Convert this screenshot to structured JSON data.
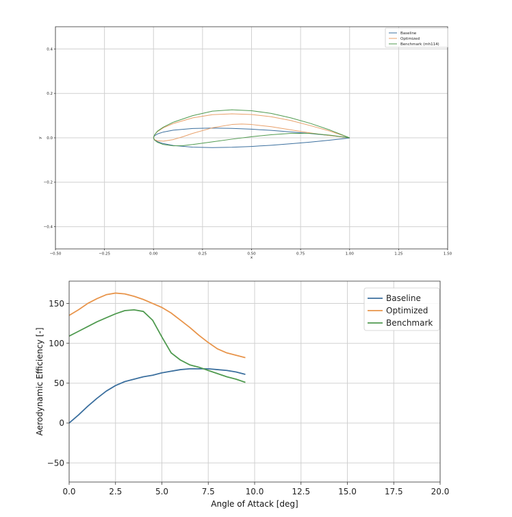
{
  "chart_data": [
    {
      "type": "line",
      "title": "",
      "xlabel": "x",
      "ylabel": "y",
      "xlim": [
        -0.5,
        1.5
      ],
      "ylim": [
        -0.5,
        0.5
      ],
      "grid": true,
      "legend": "top-right",
      "xticks": [
        "−0.50",
        "−0.25",
        "0.00",
        "0.25",
        "0.50",
        "0.75",
        "1.00",
        "1.25",
        "1.50"
      ],
      "xtick_values": [
        -0.5,
        -0.25,
        0,
        0.25,
        0.5,
        0.75,
        1.0,
        1.25,
        1.5
      ],
      "yticks": [
        "−0.4",
        "−0.2",
        "0.0",
        "0.2",
        "0.4"
      ],
      "ytick_values": [
        -0.4,
        -0.2,
        0,
        0.2,
        0.4
      ],
      "series": [
        {
          "name": "Baseline",
          "color": "#3b6f9e",
          "points": [
            [
              1,
              0.001
            ],
            [
              0.9,
              0.0106
            ],
            [
              0.8,
              0.0193
            ],
            [
              0.7,
              0.0268
            ],
            [
              0.6,
              0.0334
            ],
            [
              0.5,
              0.0388
            ],
            [
              0.4,
              0.0426
            ],
            [
              0.3,
              0.044
            ],
            [
              0.2,
              0.042
            ],
            [
              0.1,
              0.0344
            ],
            [
              0.05,
              0.026
            ],
            [
              0.02,
              0.0173
            ],
            [
              0.005,
              0.009
            ],
            [
              0,
              0
            ],
            [
              0.005,
              -0.009
            ],
            [
              0.02,
              -0.0173
            ],
            [
              0.05,
              -0.026
            ],
            [
              0.1,
              -0.0344
            ],
            [
              0.2,
              -0.042
            ],
            [
              0.3,
              -0.044
            ],
            [
              0.4,
              -0.0426
            ],
            [
              0.5,
              -0.0388
            ],
            [
              0.6,
              -0.0334
            ],
            [
              0.7,
              -0.0268
            ],
            [
              0.8,
              -0.0193
            ],
            [
              0.9,
              -0.0106
            ],
            [
              1,
              -0.001
            ]
          ]
        },
        {
          "name": "Optimized",
          "color": "#e8a06a",
          "points": [
            [
              1,
              0
            ],
            [
              0.9,
              0.03
            ],
            [
              0.8,
              0.055
            ],
            [
              0.7,
              0.078
            ],
            [
              0.6,
              0.095
            ],
            [
              0.5,
              0.105
            ],
            [
              0.4,
              0.108
            ],
            [
              0.3,
              0.104
            ],
            [
              0.2,
              0.09
            ],
            [
              0.1,
              0.064
            ],
            [
              0.05,
              0.045
            ],
            [
              0.02,
              0.028
            ],
            [
              0.005,
              0.013
            ],
            [
              0,
              0
            ],
            [
              0.005,
              -0.008
            ],
            [
              0.02,
              -0.013
            ],
            [
              0.05,
              -0.015
            ],
            [
              0.1,
              -0.008
            ],
            [
              0.15,
              0.005
            ],
            [
              0.2,
              0.02
            ],
            [
              0.3,
              0.045
            ],
            [
              0.4,
              0.06
            ],
            [
              0.45,
              0.062
            ],
            [
              0.5,
              0.06
            ],
            [
              0.6,
              0.05
            ],
            [
              0.7,
              0.036
            ],
            [
              0.8,
              0.022
            ],
            [
              0.9,
              0.01
            ],
            [
              1,
              0
            ]
          ]
        },
        {
          "name": "Benchmark (mh114)",
          "color": "#4f9a4f",
          "points": [
            [
              1,
              0
            ],
            [
              0.9,
              0.035
            ],
            [
              0.8,
              0.065
            ],
            [
              0.7,
              0.09
            ],
            [
              0.6,
              0.11
            ],
            [
              0.5,
              0.122
            ],
            [
              0.4,
              0.126
            ],
            [
              0.3,
              0.12
            ],
            [
              0.2,
              0.1
            ],
            [
              0.1,
              0.07
            ],
            [
              0.05,
              0.048
            ],
            [
              0.02,
              0.03
            ],
            [
              0.005,
              0.013
            ],
            [
              0,
              0
            ],
            [
              0.005,
              -0.01
            ],
            [
              0.02,
              -0.02
            ],
            [
              0.05,
              -0.03
            ],
            [
              0.1,
              -0.036
            ],
            [
              0.15,
              -0.035
            ],
            [
              0.2,
              -0.03
            ],
            [
              0.3,
              -0.018
            ],
            [
              0.4,
              -0.006
            ],
            [
              0.5,
              0.005
            ],
            [
              0.6,
              0.014
            ],
            [
              0.7,
              0.02
            ],
            [
              0.8,
              0.02
            ],
            [
              0.9,
              0.012
            ],
            [
              1,
              0
            ]
          ]
        }
      ]
    },
    {
      "type": "line",
      "title": "",
      "xlabel": "Angle of Attack [deg]",
      "ylabel": "Aerodynamic Efficiency [-]",
      "xlim": [
        0,
        20
      ],
      "ylim": [
        -74,
        178
      ],
      "grid": true,
      "legend": "top-right",
      "xticks": [
        "0.0",
        "2.5",
        "5.0",
        "7.5",
        "10.0",
        "12.5",
        "15.0",
        "17.5",
        "20.0"
      ],
      "xtick_values": [
        0,
        2.5,
        5,
        7.5,
        10,
        12.5,
        15,
        17.5,
        20
      ],
      "yticks": [
        "−50",
        "0",
        "50",
        "100",
        "150"
      ],
      "ytick_values": [
        -50,
        0,
        50,
        100,
        150
      ],
      "x": [
        0,
        0.5,
        1,
        1.5,
        2,
        2.5,
        3,
        3.5,
        4,
        4.5,
        5,
        5.5,
        6,
        6.5,
        7,
        7.5,
        8,
        8.5,
        9,
        9.5
      ],
      "series": [
        {
          "name": "Baseline",
          "color": "#3b6f9e",
          "values": [
            0,
            10,
            21,
            31,
            40,
            47,
            52,
            55,
            58,
            60,
            63,
            65,
            67,
            68,
            68,
            68,
            67,
            66,
            64,
            61
          ]
        },
        {
          "name": "Optimized",
          "color": "#e8944a",
          "values": [
            135,
            142,
            150,
            156,
            161,
            163,
            162,
            159,
            155,
            150,
            145,
            138,
            129,
            120,
            110,
            101,
            93,
            88,
            85,
            82
          ]
        },
        {
          "name": "Benchmark",
          "color": "#4f9a4f",
          "values": [
            109,
            115,
            121,
            127,
            132,
            137,
            141,
            142,
            140,
            129,
            108,
            88,
            79,
            73,
            70,
            66,
            62,
            58,
            55,
            51
          ]
        }
      ]
    }
  ]
}
